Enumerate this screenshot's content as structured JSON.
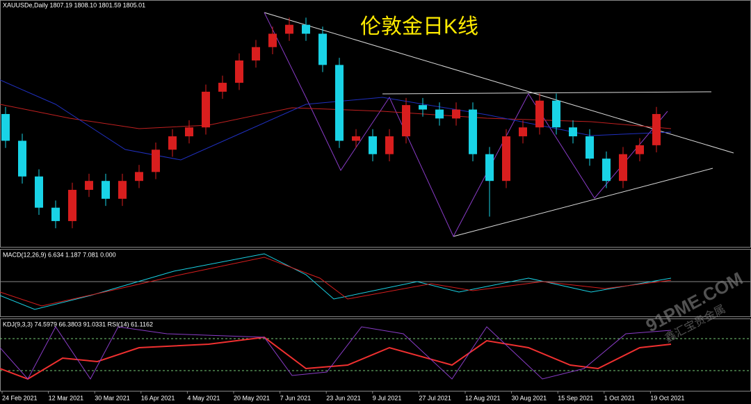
{
  "chart_data": {
    "type": "candlestick",
    "header": "XAUUSDe,Daily  1807.19 1808.10 1801.59 1805.01",
    "title": "伦敦金日K线",
    "macd_label": "MACD(12,26,9) 6.634 1.187 7.081 0.000",
    "kdj_label": "KDJ(9,3,3) 74.5979 66.3803 91.0331  RSI(14) 61.1162",
    "watermark": "91PME.COM",
    "watermark_sub": "鑫汇宝贵金属",
    "x_labels": [
      "24 Feb 2021",
      "12 Mar 2021",
      "30 Mar 2021",
      "16 Apr 2021",
      "4 May 2021",
      "20 May 2021",
      "7 Jun 2021",
      "23 Jun 2021",
      "9 Jul 2021",
      "27 Jul 2021",
      "12 Aug 2021",
      "30 Aug 2021",
      "15 Sep 2021",
      "1 Oct 2021",
      "19 Oct 2021"
    ],
    "up_color": "#d81e1e",
    "down_color": "#19d3e6",
    "ylim": [
      1660,
      1925
    ],
    "open": [
      1805,
      1775,
      1735,
      1700,
      1685,
      1720,
      1730,
      1710,
      1730,
      1740,
      1765,
      1780,
      1790,
      1830,
      1840,
      1865,
      1880,
      1895,
      1905,
      1895,
      1860,
      1775,
      1780,
      1760,
      1780,
      1815,
      1810,
      1800,
      1810,
      1760,
      1730,
      1780,
      1790,
      1820,
      1790,
      1780,
      1755,
      1730,
      1760,
      1770
    ],
    "high": [
      1813,
      1783,
      1743,
      1708,
      1728,
      1738,
      1738,
      1738,
      1748,
      1773,
      1788,
      1798,
      1838,
      1848,
      1873,
      1888,
      1903,
      1913,
      1913,
      1903,
      1868,
      1788,
      1788,
      1788,
      1823,
      1823,
      1818,
      1818,
      1818,
      1768,
      1788,
      1798,
      1828,
      1828,
      1798,
      1788,
      1763,
      1768,
      1778,
      1813
    ],
    "low": [
      1767,
      1727,
      1692,
      1677,
      1677,
      1712,
      1702,
      1702,
      1722,
      1732,
      1757,
      1772,
      1782,
      1822,
      1832,
      1857,
      1872,
      1887,
      1887,
      1852,
      1767,
      1767,
      1752,
      1752,
      1772,
      1802,
      1792,
      1792,
      1752,
      1690,
      1722,
      1772,
      1782,
      1782,
      1772,
      1747,
      1722,
      1722,
      1752,
      1762
    ],
    "close": [
      1775,
      1735,
      1700,
      1685,
      1720,
      1730,
      1710,
      1730,
      1740,
      1765,
      1780,
      1790,
      1830,
      1840,
      1865,
      1880,
      1895,
      1905,
      1895,
      1860,
      1775,
      1780,
      1760,
      1780,
      1815,
      1810,
      1800,
      1810,
      1760,
      1730,
      1780,
      1790,
      1820,
      1790,
      1780,
      1755,
      1730,
      1760,
      1770,
      1805
    ]
  }
}
